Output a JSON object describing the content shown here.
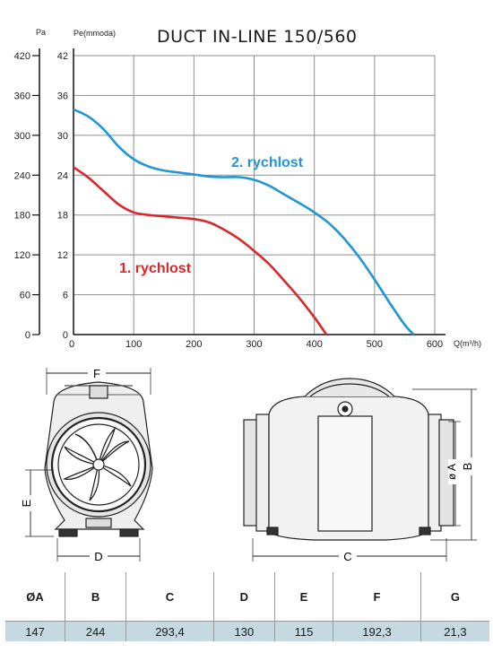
{
  "chart_data": {
    "type": "line",
    "title": "DUCT IN-LINE 150/560",
    "y_left_label": "Pa",
    "y_right_label": "Pe(mmoda)",
    "xlabel": "Q(m³/h)",
    "xlim": [
      0,
      600
    ],
    "ylim_pa": [
      0,
      420
    ],
    "ylim_mm": [
      0,
      42
    ],
    "x_ticks": [
      "0",
      "100",
      "200",
      "300",
      "400",
      "500",
      "600"
    ],
    "y_pa_ticks": [
      "0",
      "60",
      "120",
      "180",
      "240",
      "300",
      "360",
      "420"
    ],
    "y_mm_ticks": [
      "0",
      "6",
      "12",
      "18",
      "24",
      "30",
      "36",
      "42"
    ],
    "grid": true,
    "series": [
      {
        "name": "1. rychlost",
        "color": "#d8282c",
        "x": [
          0,
          25,
          50,
          75,
          100,
          125,
          150,
          175,
          200,
          225,
          250,
          275,
          300,
          325,
          350,
          375,
          400,
          420
        ],
        "y": [
          25.2,
          23.6,
          21.6,
          19.6,
          18.4,
          18.0,
          17.8,
          17.6,
          17.4,
          16.9,
          15.8,
          14.4,
          12.6,
          10.6,
          8.1,
          5.5,
          2.6,
          0
        ]
      },
      {
        "name": "2. rychlost",
        "color": "#2196d3",
        "x": [
          0,
          25,
          50,
          75,
          100,
          125,
          150,
          175,
          200,
          225,
          250,
          275,
          300,
          325,
          350,
          375,
          400,
          425,
          450,
          475,
          500,
          525,
          550,
          565
        ],
        "y": [
          33.9,
          32.8,
          30.9,
          28.3,
          26.4,
          25.3,
          24.7,
          24.4,
          24.1,
          23.8,
          23.7,
          23.7,
          23.3,
          22.4,
          21.1,
          19.8,
          18.4,
          16.7,
          14.4,
          11.6,
          8.3,
          4.8,
          1.5,
          0
        ]
      }
    ]
  },
  "drawings": {
    "front_width_label": "F",
    "front_base_label": "D",
    "front_height_label": "E",
    "side_length_label": "C",
    "side_dia_label": "ø A",
    "side_height_label": "B"
  },
  "table": {
    "headers": [
      "ØA",
      "B",
      "C",
      "D",
      "E",
      "F",
      "G"
    ],
    "values": [
      "147",
      "244",
      "293,4",
      "130",
      "115",
      "192,3",
      "21,3"
    ]
  }
}
